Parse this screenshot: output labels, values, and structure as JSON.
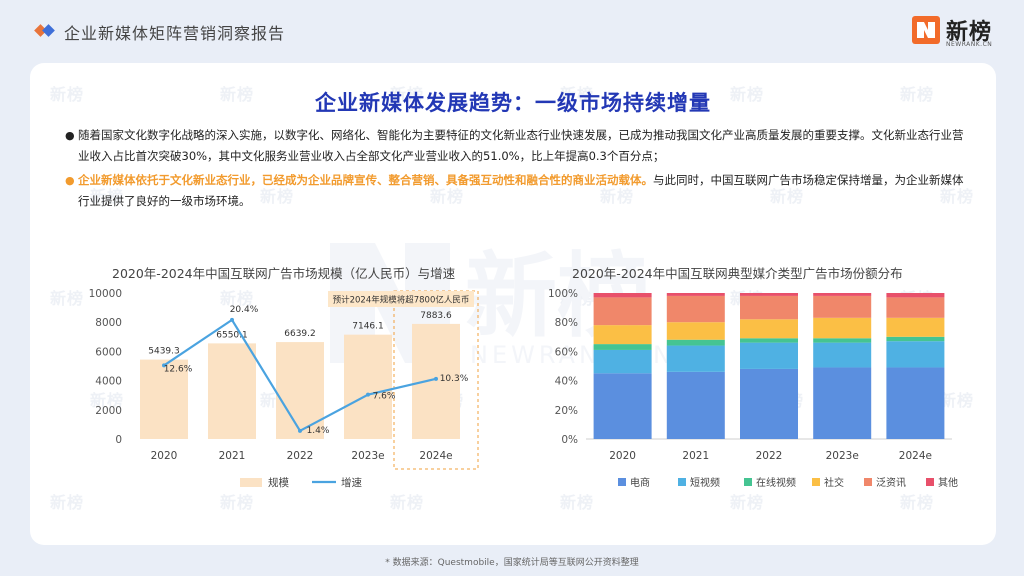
{
  "header": {
    "report_title": "企业新媒体矩阵营销洞察报告",
    "logo_text": "新榜",
    "logo_sub": "NEWRANK.CN"
  },
  "watermark": {
    "text": "新榜",
    "big_text": "新榜",
    "big_sub": "NEWRANK.CN"
  },
  "main": {
    "title": "企业新媒体发展趋势：一级市场持续增量",
    "para1": "随着国家文化数字化战略的深入实施，以数字化、网络化、智能化为主要特征的文化新业态行业快速发展，已成为推动我国文化产业高质量发展的重要支撑。文化新业态行业营业收入占比首次突破30%，其中文化服务业营业收入占全部文化产业营业收入的51.0%，比上年提高0.3个百分点；",
    "para2_highlight": "企业新媒体依托于文化新业态行业，已经成为企业品牌宣传、整合营销、具备强互动性和融合性的商业活动载体。",
    "para2_rest": "与此同时，中国互联网广告市场稳定保持增量，为企业新媒体行业提供了良好的一级市场环境。"
  },
  "colors": {
    "title_blue": "#2338b5",
    "highlight_orange": "#f29b2e",
    "bar_fill": "#fbe2c4",
    "line_blue": "#4aa3e0",
    "series": [
      "#5b8fdf",
      "#4fb1e3",
      "#45c492",
      "#fbbf45",
      "#f0876a",
      "#e8506a"
    ]
  },
  "chart_data": [
    {
      "type": "bar",
      "title": "2020年-2024年中国互联网广告市场规模（亿人民币）与增速",
      "categories": [
        "2020",
        "2021",
        "2022",
        "2023e",
        "2024e"
      ],
      "series": [
        {
          "name": "规模",
          "type": "bar",
          "axis": "left",
          "values": [
            5439.3,
            6550.1,
            6639.2,
            7146.1,
            7883.6
          ],
          "labels": [
            "5439.3",
            "6550.1",
            "6639.2",
            "7146.1",
            "7883.6"
          ]
        },
        {
          "name": "增速",
          "type": "line",
          "axis": "right",
          "values": [
            12.6,
            20.4,
            1.4,
            7.6,
            10.3
          ],
          "labels": [
            "12.6%",
            "20.4%",
            "1.4%",
            "7.6%",
            "10.3%"
          ]
        }
      ],
      "y_left": {
        "ticks": [
          "0",
          "2000",
          "4000",
          "6000",
          "8000",
          "10000"
        ],
        "range": [
          0,
          10000
        ]
      },
      "y_right": {
        "ticks": [
          "0.0%",
          "5.0%",
          "10.0%",
          "15.0%",
          "20.0%",
          "25.0%"
        ],
        "range": [
          0,
          25
        ]
      },
      "annotation": "预计2024年规模将超7800亿人民币",
      "grid": false,
      "legend": "bottom"
    },
    {
      "type": "bar",
      "stacked": true,
      "percent": true,
      "title": "2020年-2024年中国互联网典型媒介类型广告市场份额分布",
      "categories": [
        "2020",
        "2021",
        "2022",
        "2023e",
        "2024e"
      ],
      "series": [
        {
          "name": "电商",
          "values": [
            45,
            46,
            48,
            49,
            49
          ]
        },
        {
          "name": "短视频",
          "values": [
            16,
            18,
            18,
            17,
            18
          ]
        },
        {
          "name": "在线视频",
          "values": [
            4,
            4,
            3,
            3,
            3
          ]
        },
        {
          "name": "社交",
          "values": [
            13,
            12,
            13,
            14,
            13
          ]
        },
        {
          "name": "泛资讯",
          "values": [
            19,
            18,
            16,
            15,
            14
          ]
        },
        {
          "name": "其他",
          "values": [
            3,
            2,
            2,
            2,
            3
          ]
        }
      ],
      "y": {
        "ticks": [
          "0%",
          "20%",
          "40%",
          "60%",
          "80%",
          "100%"
        ],
        "range": [
          0,
          100
        ]
      },
      "grid": false,
      "legend": "bottom"
    }
  ],
  "footnote": "* 数据来源：Questmobile，国家统计局等互联网公开资料整理"
}
